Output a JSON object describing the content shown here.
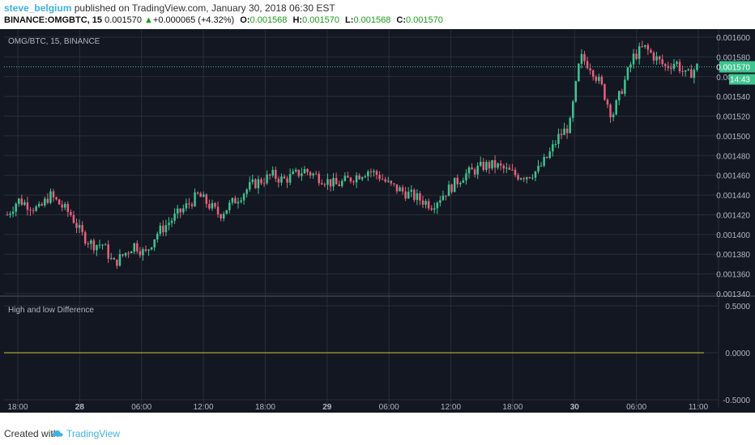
{
  "header": {
    "author": "steve_belgium",
    "published": "published on TradingView.com, January 30, 2018 06:30 EST",
    "symbol": "BINANCE:OMGBTC, 15",
    "price": "0.001570",
    "change_arrow": "▲",
    "change": "+0.000065 (+4.32%)",
    "o_label": "O:",
    "o_value": "0.001568",
    "h_label": "H:",
    "h_value": "0.001570",
    "l_label": "L:",
    "l_value": "0.001568",
    "c_label": "C:",
    "c_value": "0.001570"
  },
  "footer": {
    "created_with": "Created with",
    "brand": "TradingView",
    "logo_icon": "tradingview-cloud-icon"
  },
  "colors": {
    "background": "#141823",
    "grid": "#2a2e39",
    "up": "#3ec590",
    "down": "#e8617a",
    "indicator": "#c8c43a",
    "price_line": "#3ec590",
    "author": "#3bb3e4"
  },
  "chart_data": [
    {
      "type": "candlestick",
      "title": "OMG/BTC, 15, BINANCE",
      "x_ticks": [
        "18:00",
        "28",
        "06:00",
        "12:00",
        "18:00",
        "29",
        "06:00",
        "12:00",
        "18:00",
        "30",
        "06:00",
        "11:00"
      ],
      "y_ticks": [
        "0.001600",
        "0.001580",
        "0.001560",
        "0.001540",
        "0.001520",
        "0.001500",
        "0.001480",
        "0.001460",
        "0.001440",
        "0.001420",
        "0.001400",
        "0.001380",
        "0.001360",
        "0.001340"
      ],
      "ylim": [
        0.00134,
        0.0016
      ],
      "last_price": "0.001570",
      "countdown": "14:43",
      "grid": true,
      "close_path": [
        0.00142,
        0.001435,
        0.00143,
        0.001425,
        0.00144,
        0.00143,
        0.00142,
        0.0014,
        0.00139,
        0.00139,
        0.00137,
        0.00138,
        0.00139,
        0.00138,
        0.0014,
        0.00141,
        0.00142,
        0.00143,
        0.00144,
        0.00143,
        0.00142,
        0.00143,
        0.00144,
        0.00145,
        0.001455,
        0.00146,
        0.001455,
        0.00146,
        0.001465,
        0.00146,
        0.001455,
        0.00145,
        0.001455,
        0.00146,
        0.001465,
        0.00146,
        0.00145,
        0.001445,
        0.00144,
        0.001435,
        0.00143,
        0.00144,
        0.00145,
        0.00146,
        0.001465,
        0.00147,
        0.00147,
        0.001465,
        0.00146,
        0.00146,
        0.001465,
        0.00148,
        0.0015,
        0.00151,
        0.00158,
        0.00157,
        0.00155,
        0.00152,
        0.00155,
        0.00158,
        0.00159,
        0.00158,
        0.00157,
        0.001575,
        0.00156,
        0.00157
      ]
    },
    {
      "type": "line",
      "title": "High and low Difference",
      "y_ticks": [
        "0.5000",
        "0.0000",
        "-0.5000"
      ],
      "ylim": [
        -0.5,
        0.5
      ],
      "values": [
        0,
        0
      ]
    }
  ]
}
